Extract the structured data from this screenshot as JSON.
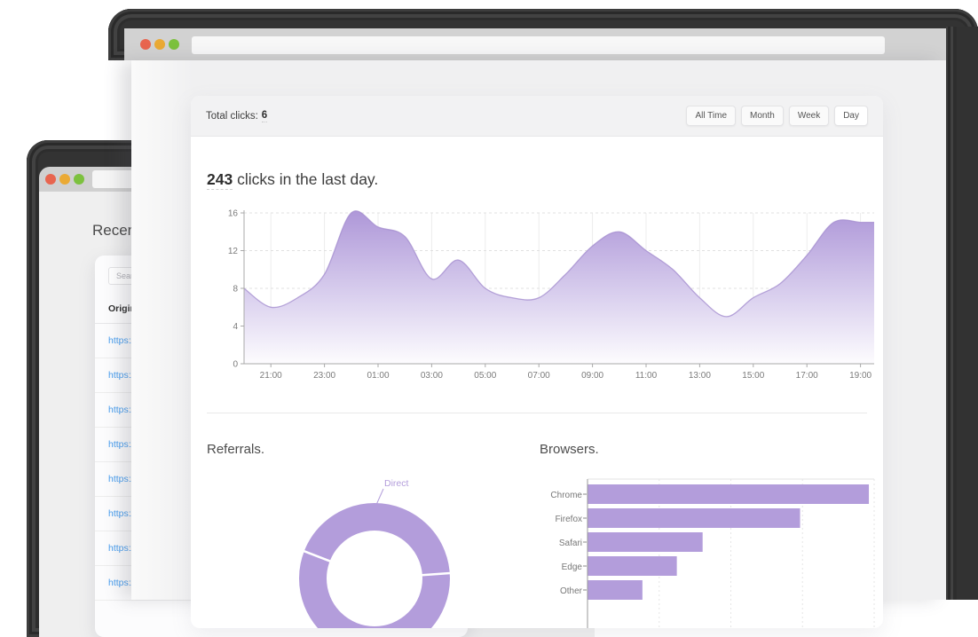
{
  "colors": {
    "accent_purple": "#b39ddb",
    "area_line_purple": "#a58fd0",
    "frame_dark": "#323232",
    "titlebar_gray": "#d2d2d2",
    "content_bg": "#f0f0f1",
    "link_blue": "#4a9ff0",
    "traffic_red": "#e8654f",
    "traffic_yellow": "#eaaa35",
    "traffic_green": "#7cc13e"
  },
  "front_window": {
    "titlebar": {
      "url_value": ""
    },
    "stats_card": {
      "total_label": "Total clicks:",
      "total_value": "6",
      "range_buttons": [
        {
          "label": "All Time",
          "active": false
        },
        {
          "label": "Month",
          "active": false
        },
        {
          "label": "Week",
          "active": false
        },
        {
          "label": "Day",
          "active": true
        }
      ],
      "headline_count": "243",
      "headline_rest": " clicks in the last day.",
      "referrals_title": "Referrals.",
      "browsers_title": "Browsers."
    }
  },
  "back_window": {
    "titlebar": {
      "url_value": ""
    },
    "heading": "Recent links.",
    "search_placeholder": "Search...",
    "table_column": "Original URL",
    "rows": [
      "https://",
      "https://",
      "https://",
      "https://",
      "https://",
      "https://",
      "https://",
      "https://"
    ]
  },
  "chart_data": [
    {
      "type": "area",
      "title": "243 clicks in the last day.",
      "x": [
        "20:00",
        "21:00",
        "22:00",
        "23:00",
        "00:00",
        "01:00",
        "02:00",
        "03:00",
        "04:00",
        "05:00",
        "06:00",
        "07:00",
        "08:00",
        "09:00",
        "10:00",
        "11:00",
        "12:00",
        "13:00",
        "14:00",
        "15:00",
        "16:00",
        "17:00",
        "18:00",
        "19:00"
      ],
      "values": [
        8,
        6,
        7,
        9.5,
        16,
        14.5,
        13.5,
        9,
        11,
        8,
        7,
        7,
        9.5,
        12.5,
        14,
        12,
        10,
        7,
        5,
        7,
        8.5,
        11.5,
        15,
        15
      ],
      "ylim": [
        0,
        16
      ],
      "yticks": [
        0,
        4,
        8,
        12,
        16
      ],
      "xticks": [
        "21:00",
        "23:00",
        "01:00",
        "03:00",
        "05:00",
        "07:00",
        "09:00",
        "11:00",
        "13:00",
        "15:00",
        "17:00",
        "19:00"
      ],
      "grid": true,
      "fill_color": "#b39ddb",
      "fill_style": "vertical-gradient-to-white"
    },
    {
      "type": "pie",
      "subtype": "doughnut",
      "title": "Referrals.",
      "segments": [
        {
          "label": "Direct",
          "value": 43
        },
        {
          "label": "",
          "value": 57
        }
      ],
      "rotation_deg": 4,
      "color": "#b39ddb",
      "legend_position": "outside-label-with-leader-line"
    },
    {
      "type": "bar",
      "orientation": "horizontal",
      "title": "Browsers.",
      "categories": [
        "Chrome",
        "Firefox",
        "Safari",
        "Edge",
        "Other"
      ],
      "values": [
        98,
        74,
        40,
        31,
        19
      ],
      "xlim": [
        0,
        100
      ],
      "grid": true,
      "color": "#b39ddb"
    }
  ]
}
